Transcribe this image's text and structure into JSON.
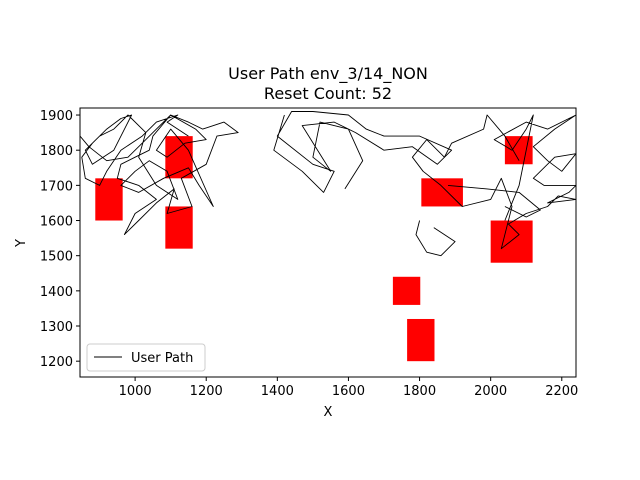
{
  "chart_data": {
    "type": "line",
    "title": "User Path env_3/14_NON",
    "subtitle": "Reset Count: 52",
    "xlabel": "X",
    "ylabel": "Y",
    "xlim": [
      845,
      2240
    ],
    "ylim": [
      1155,
      1920
    ],
    "xticks": [
      1000,
      1200,
      1400,
      1600,
      1800,
      2000,
      2200
    ],
    "yticks": [
      1200,
      1300,
      1400,
      1500,
      1600,
      1700,
      1800,
      1900
    ],
    "grid": false,
    "legend": {
      "placement": "lower-left",
      "entries": [
        "User Path"
      ]
    },
    "series": [
      {
        "name": "User Path",
        "color": "#000000",
        "segments": [
          [
            [
              1590,
              1690
            ],
            [
              1640,
              1770
            ],
            [
              1600,
              1860
            ],
            [
              1520,
              1880
            ],
            [
              1500,
              1780
            ],
            [
              1550,
              1740
            ],
            [
              1470,
              1870
            ],
            [
              1560,
              1880
            ],
            [
              1620,
              1850
            ],
            [
              1700,
              1800
            ],
            [
              1780,
              1810
            ],
            [
              1850,
              1760
            ],
            [
              1890,
              1800
            ],
            [
              1800,
              1840
            ],
            [
              1700,
              1840
            ],
            [
              1650,
              1860
            ],
            [
              1600,
              1900
            ],
            [
              1500,
              1910
            ],
            [
              1440,
              1910
            ],
            [
              1400,
              1840
            ],
            [
              1500,
              1760
            ],
            [
              1560,
              1740
            ],
            [
              1530,
              1680
            ],
            [
              1470,
              1740
            ],
            [
              1390,
              1800
            ],
            [
              1420,
              1900
            ]
          ],
          [
            [
              2040,
              1600
            ],
            [
              2080,
              1700
            ],
            [
              2120,
              1900
            ],
            [
              2100,
              1860
            ],
            [
              2060,
              1800
            ],
            [
              2010,
              1830
            ],
            [
              2100,
              1880
            ],
            [
              2160,
              1860
            ],
            [
              2240,
              1900
            ],
            [
              2180,
              1860
            ],
            [
              2120,
              1810
            ],
            [
              2160,
              1770
            ],
            [
              2200,
              1740
            ],
            [
              2240,
              1790
            ],
            [
              2180,
              1780
            ],
            [
              2120,
              1720
            ],
            [
              2150,
              1700
            ],
            [
              2240,
              1700
            ],
            [
              2220,
              1680
            ],
            [
              2160,
              1650
            ],
            [
              2240,
              1660
            ],
            [
              2190,
              1670
            ],
            [
              2160,
              1640
            ],
            [
              2100,
              1620
            ],
            [
              2050,
              1590
            ],
            [
              2080,
              1560
            ],
            [
              2030,
              1520
            ],
            [
              2060,
              1640
            ],
            [
              2030,
              1720
            ],
            [
              2000,
              1660
            ],
            [
              1920,
              1640
            ],
            [
              1860,
              1700
            ],
            [
              1810,
              1740
            ],
            [
              1780,
              1780
            ],
            [
              1820,
              1830
            ],
            [
              1870,
              1780
            ],
            [
              1890,
              1820
            ],
            [
              1980,
              1860
            ],
            [
              1990,
              1900
            ],
            [
              2040,
              1840
            ],
            [
              2080,
              1770
            ]
          ],
          [
            [
              1880,
              1700
            ],
            [
              1990,
              1690
            ],
            [
              2080,
              1680
            ],
            [
              2140,
              1630
            ],
            [
              2100,
              1610
            ],
            [
              2040,
              1640
            ]
          ],
          [
            [
              1150,
              1840
            ],
            [
              1090,
              1880
            ],
            [
              1120,
              1900
            ],
            [
              1060,
              1880
            ],
            [
              1020,
              1840
            ],
            [
              960,
              1800
            ],
            [
              920,
              1740
            ],
            [
              900,
              1700
            ],
            [
              860,
              1720
            ],
            [
              850,
              1780
            ],
            [
              880,
              1820
            ],
            [
              920,
              1860
            ],
            [
              960,
              1890
            ],
            [
              990,
              1900
            ],
            [
              940,
              1800
            ],
            [
              880,
              1760
            ],
            [
              860,
              1800
            ],
            [
              900,
              1840
            ],
            [
              940,
              1860
            ],
            [
              980,
              1900
            ],
            [
              1030,
              1850
            ],
            [
              1010,
              1780
            ],
            [
              1060,
              1700
            ],
            [
              1120,
              1660
            ],
            [
              1090,
              1740
            ],
            [
              1040,
              1770
            ],
            [
              1000,
              1740
            ],
            [
              960,
              1700
            ],
            [
              1010,
              1680
            ],
            [
              1080,
              1720
            ],
            [
              1150,
              1750
            ],
            [
              1180,
              1700
            ],
            [
              1220,
              1640
            ],
            [
              1150,
              1800
            ],
            [
              1100,
              1860
            ],
            [
              1060,
              1800
            ],
            [
              1090,
              1780
            ],
            [
              1140,
              1820
            ],
            [
              1200,
              1830
            ],
            [
              1170,
              1860
            ],
            [
              1100,
              1900
            ],
            [
              1050,
              1840
            ],
            [
              1040,
              1800
            ],
            [
              1000,
              1780
            ],
            [
              960,
              1760
            ],
            [
              950,
              1720
            ],
            [
              1010,
              1700
            ],
            [
              1060,
              1660
            ],
            [
              1000,
              1620
            ],
            [
              970,
              1560
            ],
            [
              1010,
              1600
            ],
            [
              1060,
              1650
            ],
            [
              1110,
              1690
            ],
            [
              1090,
              1620
            ],
            [
              1160,
              1640
            ],
            [
              1130,
              1720
            ],
            [
              1200,
              1760
            ],
            [
              1230,
              1840
            ],
            [
              1290,
              1850
            ],
            [
              1250,
              1880
            ],
            [
              1190,
              1860
            ],
            [
              1150,
              1880
            ],
            [
              1100,
              1900
            ],
            [
              1060,
              1860
            ],
            [
              1020,
              1820
            ],
            [
              980,
              1780
            ],
            [
              920,
              1770
            ],
            [
              870,
              1810
            ],
            [
              845,
              1840
            ]
          ],
          [
            [
              1800,
              1600
            ],
            [
              1790,
              1560
            ],
            [
              1820,
              1510
            ],
            [
              1860,
              1500
            ],
            [
              1900,
              1540
            ],
            [
              1840,
              1580
            ]
          ]
        ]
      }
    ],
    "obstacles": [
      {
        "x0": 888,
        "x1": 965,
        "y0": 1600,
        "y1": 1720
      },
      {
        "x0": 1085,
        "x1": 1162,
        "y0": 1720,
        "y1": 1840
      },
      {
        "x0": 1085,
        "x1": 1162,
        "y0": 1520,
        "y1": 1640
      },
      {
        "x0": 1805,
        "x1": 1922,
        "y0": 1640,
        "y1": 1720
      },
      {
        "x0": 2000,
        "x1": 2118,
        "y0": 1480,
        "y1": 1600
      },
      {
        "x0": 2040,
        "x1": 2118,
        "y0": 1760,
        "y1": 1840
      },
      {
        "x0": 1725,
        "x1": 1802,
        "y0": 1360,
        "y1": 1440
      },
      {
        "x0": 1765,
        "x1": 1842,
        "y0": 1200,
        "y1": 1320
      }
    ],
    "obstacle_color": "#ff0000"
  }
}
